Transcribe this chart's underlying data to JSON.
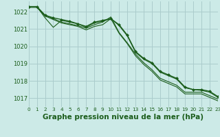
{
  "background_color": "#cceae7",
  "grid_color": "#aacccc",
  "line_color": "#1a5c1a",
  "marker_color": "#1a5c1a",
  "xlabel": "Graphe pression niveau de la mer (hPa)",
  "xlim": [
    0,
    23
  ],
  "ylim": [
    1016.5,
    1022.6
  ],
  "yticks": [
    1017,
    1018,
    1019,
    1020,
    1021,
    1022
  ],
  "xticks": [
    0,
    1,
    2,
    3,
    4,
    5,
    6,
    7,
    8,
    9,
    10,
    11,
    12,
    13,
    14,
    15,
    16,
    17,
    18,
    19,
    20,
    21,
    22,
    23
  ],
  "line1_y": [
    1022.3,
    1022.3,
    1021.65,
    1021.1,
    1021.5,
    1021.4,
    1021.3,
    1021.1,
    1021.35,
    1021.45,
    1021.6,
    1021.2,
    1020.6,
    1019.65,
    1019.25,
    1019.0,
    1018.5,
    1018.3,
    1018.1,
    1017.6,
    1017.5,
    1017.45,
    1017.35,
    1017.05
  ],
  "line2_y": [
    1022.3,
    1022.3,
    1021.8,
    1021.6,
    1021.4,
    1021.3,
    1021.2,
    1021.05,
    1021.25,
    1021.4,
    1021.7,
    1020.8,
    1020.2,
    1019.55,
    1019.05,
    1018.65,
    1018.15,
    1017.95,
    1017.75,
    1017.35,
    1017.35,
    1017.35,
    1017.15,
    1016.95
  ],
  "line3_y": [
    1022.25,
    1022.25,
    1021.75,
    1021.55,
    1021.35,
    1021.25,
    1021.15,
    1020.95,
    1021.15,
    1021.25,
    1021.6,
    1020.75,
    1020.15,
    1019.45,
    1018.95,
    1018.55,
    1018.05,
    1017.85,
    1017.65,
    1017.25,
    1017.25,
    1017.25,
    1017.05,
    1016.85
  ],
  "main_y": [
    1022.3,
    1022.3,
    1021.8,
    1021.65,
    1021.55,
    1021.45,
    1021.3,
    1021.15,
    1021.4,
    1021.5,
    1021.6,
    1021.25,
    1020.65,
    1019.7,
    1019.3,
    1019.05,
    1018.55,
    1018.35,
    1018.15,
    1017.65,
    1017.5,
    1017.5,
    1017.4,
    1017.1
  ]
}
